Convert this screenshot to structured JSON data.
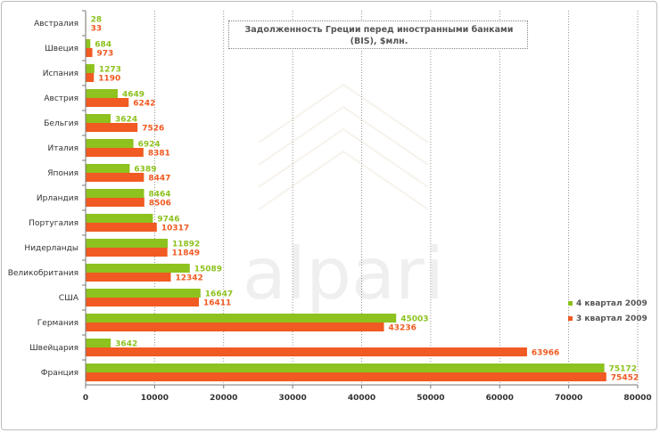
{
  "chart_data": {
    "type": "bar",
    "orientation": "horizontal",
    "title": "Задолженность Греции перед иностранными банками (BIS), $млн.",
    "categories": [
      "Австралия",
      "Швеция",
      "Испания",
      "Австрия",
      "Бельгия",
      "Италия",
      "Япония",
      "Ирландия",
      "Португалия",
      "Нидерланды",
      "Великобритания",
      "США",
      "Германия",
      "Швейцария",
      "Франция"
    ],
    "series": [
      {
        "name": "4 квартал 2009",
        "color": "#8dc21f",
        "values": [
          28,
          684,
          1273,
          4649,
          3624,
          6924,
          6389,
          8464,
          9746,
          11892,
          15089,
          16647,
          45003,
          3642,
          75172
        ]
      },
      {
        "name": "3 квартал 2009",
        "color": "#f15a22",
        "values": [
          33,
          973,
          1190,
          6242,
          7526,
          8381,
          8447,
          8506,
          10317,
          11849,
          12342,
          16411,
          43236,
          63966,
          75452
        ]
      }
    ],
    "xlim": [
      0,
      80000
    ],
    "xticks": [
      0,
      10000,
      20000,
      30000,
      40000,
      50000,
      60000,
      70000,
      80000
    ],
    "grid": true,
    "legend": "right"
  }
}
